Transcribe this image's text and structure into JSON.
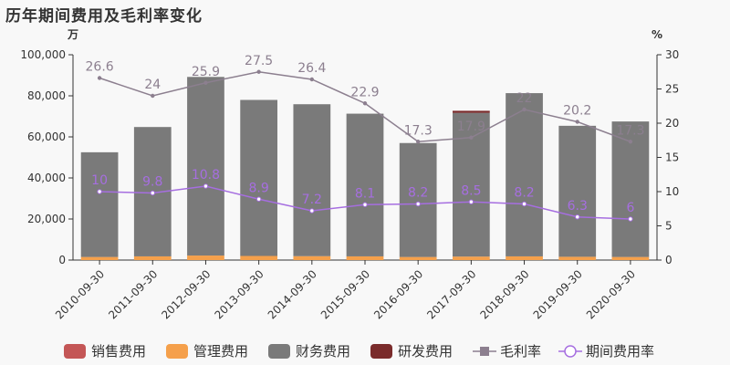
{
  "title": "历年期间费用及毛利率变化",
  "chart_data": {
    "type": "bar",
    "title": "历年期间费用及毛利率变化",
    "categories": [
      "2010-09-30",
      "2011-09-30",
      "2012-09-30",
      "2013-09-30",
      "2014-09-30",
      "2015-09-30",
      "2016-09-30",
      "2017-09-30",
      "2018-09-30",
      "2019-09-30",
      "2020-09-30"
    ],
    "y_left": {
      "unit": "万",
      "ylim": [
        0,
        100000
      ],
      "ticks": [
        "0",
        "20,000",
        "40,000",
        "60,000",
        "80,000",
        "100,000"
      ]
    },
    "y_right": {
      "unit": "%",
      "ylim": [
        0,
        30
      ],
      "ticks": [
        "0",
        "5",
        "10",
        "15",
        "20",
        "25",
        "30"
      ]
    },
    "stack_series": [
      {
        "name": "销售费用",
        "color": "#c45656",
        "values": [
          0,
          0,
          0,
          0,
          0,
          0,
          0,
          0,
          0,
          0,
          0
        ]
      },
      {
        "name": "管理费用",
        "color": "#f5a04b",
        "values": [
          1500,
          1800,
          2200,
          2000,
          1900,
          1800,
          1500,
          1700,
          1800,
          1600,
          1500
        ]
      },
      {
        "name": "财务费用",
        "color": "#7a7a7a",
        "values": [
          51000,
          63000,
          87000,
          76000,
          74000,
          69500,
          55500,
          70000,
          79500,
          63800,
          66000
        ]
      },
      {
        "name": "研发费用",
        "color": "#7a2b2b",
        "values": [
          0,
          0,
          0,
          0,
          0,
          0,
          0,
          1000,
          0,
          0,
          0
        ]
      }
    ],
    "line_series": [
      {
        "name": "毛利率",
        "color": "#8c7f8f",
        "values": [
          26.6,
          24,
          25.9,
          27.5,
          26.4,
          22.9,
          17.3,
          17.9,
          22,
          20.2,
          17.3
        ],
        "labels": [
          "26.6",
          "24",
          "25.9",
          "27.5",
          "26.4",
          "22.9",
          "17.3",
          "17.9",
          "22",
          "20.2",
          "17.3"
        ]
      },
      {
        "name": "期间费用率",
        "color": "#a66ee0",
        "values": [
          10,
          9.8,
          10.8,
          8.9,
          7.2,
          8.1,
          8.2,
          8.5,
          8.2,
          6.3,
          6
        ],
        "labels": [
          "10",
          "9.8",
          "10.8",
          "8.9",
          "7.2",
          "8.1",
          "8.2",
          "8.5",
          "8.2",
          "6.3",
          "6"
        ]
      }
    ],
    "legend": {
      "position": "bottom"
    }
  }
}
